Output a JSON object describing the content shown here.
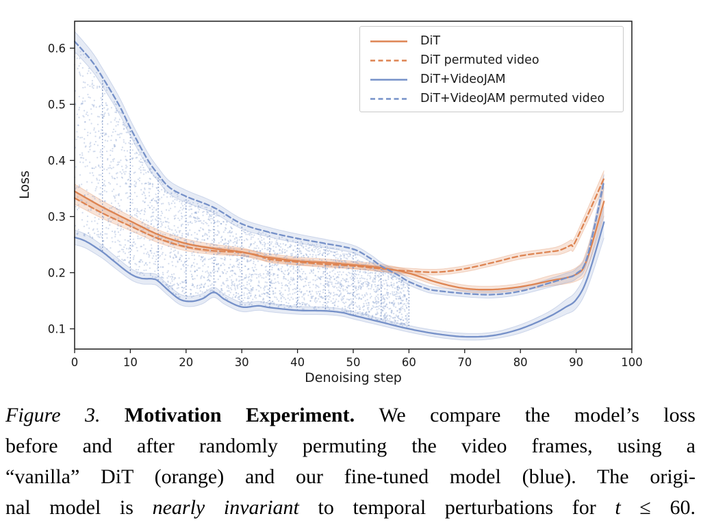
{
  "caption": {
    "lines": [
      {
        "s0": "Figure 3. ",
        "s1": "Motivation Experiment. ",
        "s2": "We compare the model’s loss"
      },
      {
        "s0": "before and after randomly permuting the video frames, using a"
      },
      {
        "s0": "“vanilla” DiT (orange) and our fine-tuned model (blue). The origi-"
      },
      {
        "s0": "nal model is ",
        "s1": "nearly invariant",
        "s2": " to temporal perturbations for ",
        "s3": "t",
        "s4": " ≤ 60."
      }
    ]
  },
  "chart_data": {
    "type": "line",
    "title": "",
    "xlabel": "Denoising step",
    "ylabel": "Loss",
    "xlim": [
      0,
      100
    ],
    "ylim": [
      0.064,
      0.648
    ],
    "xticks": [
      0,
      10,
      20,
      30,
      40,
      50,
      60,
      70,
      80,
      90,
      100
    ],
    "yticks": [
      0.1,
      0.2,
      0.3,
      0.4,
      0.5,
      0.6
    ],
    "grid": false,
    "legend_position": "upper right",
    "axis_color": "#1c1c1c",
    "tick_label_color": "#1a1a1a",
    "series": [
      {
        "name": "DiT",
        "color": "#dd8452",
        "dash": "solid",
        "points": [
          [
            0,
            0.345
          ],
          [
            5,
            0.317
          ],
          [
            10,
            0.292
          ],
          [
            15,
            0.268
          ],
          [
            20,
            0.252
          ],
          [
            25,
            0.243
          ],
          [
            30,
            0.237
          ],
          [
            33,
            0.23
          ],
          [
            35,
            0.227
          ],
          [
            40,
            0.221
          ],
          [
            45,
            0.218
          ],
          [
            50,
            0.214
          ],
          [
            55,
            0.209
          ],
          [
            60,
            0.199
          ],
          [
            65,
            0.183
          ],
          [
            70,
            0.172
          ],
          [
            75,
            0.17
          ],
          [
            80,
            0.175
          ],
          [
            85,
            0.185
          ],
          [
            90,
            0.197
          ],
          [
            92,
            0.225
          ],
          [
            95,
            0.327
          ]
        ],
        "band": [
          [
            0,
            0.013
          ],
          [
            10,
            0.009
          ],
          [
            30,
            0.007
          ],
          [
            60,
            0.006
          ],
          [
            80,
            0.006
          ],
          [
            90,
            0.012
          ],
          [
            95,
            0.026
          ]
        ]
      },
      {
        "name": "DiT permuted video",
        "color": "#dd8452",
        "dash": "dashed",
        "points": [
          [
            0,
            0.333
          ],
          [
            5,
            0.306
          ],
          [
            10,
            0.283
          ],
          [
            15,
            0.261
          ],
          [
            20,
            0.246
          ],
          [
            25,
            0.239
          ],
          [
            30,
            0.236
          ],
          [
            33,
            0.231
          ],
          [
            35,
            0.224
          ],
          [
            40,
            0.219
          ],
          [
            45,
            0.215
          ],
          [
            50,
            0.212
          ],
          [
            55,
            0.207
          ],
          [
            60,
            0.203
          ],
          [
            65,
            0.201
          ],
          [
            70,
            0.207
          ],
          [
            75,
            0.218
          ],
          [
            80,
            0.23
          ],
          [
            85,
            0.237
          ],
          [
            87,
            0.24
          ],
          [
            89,
            0.249
          ],
          [
            90,
            0.258
          ],
          [
            95,
            0.368
          ]
        ],
        "band": [
          [
            0,
            0.011
          ],
          [
            10,
            0.008
          ],
          [
            30,
            0.006
          ],
          [
            60,
            0.005
          ],
          [
            85,
            0.006
          ],
          [
            90,
            0.01
          ],
          [
            95,
            0.014
          ]
        ]
      },
      {
        "name": "DiT+VideoJAM",
        "color": "#7590c8",
        "dash": "solid",
        "points": [
          [
            0,
            0.263
          ],
          [
            2,
            0.256
          ],
          [
            5,
            0.237
          ],
          [
            7,
            0.221
          ],
          [
            10,
            0.198
          ],
          [
            12,
            0.19
          ],
          [
            14,
            0.189
          ],
          [
            15,
            0.185
          ],
          [
            17,
            0.167
          ],
          [
            19,
            0.152
          ],
          [
            21,
            0.149
          ],
          [
            23,
            0.154
          ],
          [
            25,
            0.165
          ],
          [
            27,
            0.152
          ],
          [
            30,
            0.139
          ],
          [
            33,
            0.141
          ],
          [
            35,
            0.138
          ],
          [
            40,
            0.133
          ],
          [
            45,
            0.132
          ],
          [
            48,
            0.129
          ],
          [
            50,
            0.124
          ],
          [
            55,
            0.112
          ],
          [
            60,
            0.1
          ],
          [
            65,
            0.091
          ],
          [
            70,
            0.086
          ],
          [
            75,
            0.088
          ],
          [
            80,
            0.1
          ],
          [
            85,
            0.121
          ],
          [
            88,
            0.138
          ],
          [
            90,
            0.152
          ],
          [
            92,
            0.19
          ],
          [
            95,
            0.29
          ]
        ],
        "band": [
          [
            0,
            0.013
          ],
          [
            10,
            0.01
          ],
          [
            25,
            0.009
          ],
          [
            40,
            0.007
          ],
          [
            60,
            0.006
          ],
          [
            75,
            0.006
          ],
          [
            85,
            0.009
          ],
          [
            92,
            0.018
          ],
          [
            95,
            0.028
          ]
        ]
      },
      {
        "name": "DiT+VideoJAM permuted video",
        "color": "#7590c8",
        "dash": "dashed",
        "points": [
          [
            0,
            0.612
          ],
          [
            3,
            0.578
          ],
          [
            5,
            0.548
          ],
          [
            8,
            0.498
          ],
          [
            10,
            0.458
          ],
          [
            13,
            0.403
          ],
          [
            15,
            0.375
          ],
          [
            17,
            0.352
          ],
          [
            20,
            0.336
          ],
          [
            25,
            0.316
          ],
          [
            30,
            0.287
          ],
          [
            35,
            0.272
          ],
          [
            40,
            0.261
          ],
          [
            45,
            0.252
          ],
          [
            50,
            0.242
          ],
          [
            53,
            0.226
          ],
          [
            55,
            0.212
          ],
          [
            58,
            0.196
          ],
          [
            60,
            0.184
          ],
          [
            63,
            0.172
          ],
          [
            65,
            0.168
          ],
          [
            70,
            0.163
          ],
          [
            75,
            0.161
          ],
          [
            80,
            0.167
          ],
          [
            85,
            0.181
          ],
          [
            88,
            0.19
          ],
          [
            90,
            0.198
          ],
          [
            92,
            0.228
          ],
          [
            95,
            0.363
          ]
        ],
        "band": [
          [
            0,
            0.018
          ],
          [
            5,
            0.016
          ],
          [
            15,
            0.012
          ],
          [
            30,
            0.009
          ],
          [
            50,
            0.007
          ],
          [
            60,
            0.006
          ],
          [
            80,
            0.006
          ],
          [
            90,
            0.009
          ],
          [
            95,
            0.012
          ]
        ]
      }
    ],
    "scatter_fill": {
      "description": "random noise dots between DiT+VideoJAM permuted (top) and DiT+VideoJAM (bottom) envelopes",
      "x_range": [
        0,
        60
      ],
      "color": "#7d97cb",
      "opacity": 0.33,
      "count": 3200
    },
    "vlines": {
      "steps": [
        5,
        10,
        15,
        20,
        25,
        30,
        35,
        40,
        45,
        50,
        55,
        60
      ],
      "style": "dotted",
      "color": "#5b79b7"
    }
  }
}
